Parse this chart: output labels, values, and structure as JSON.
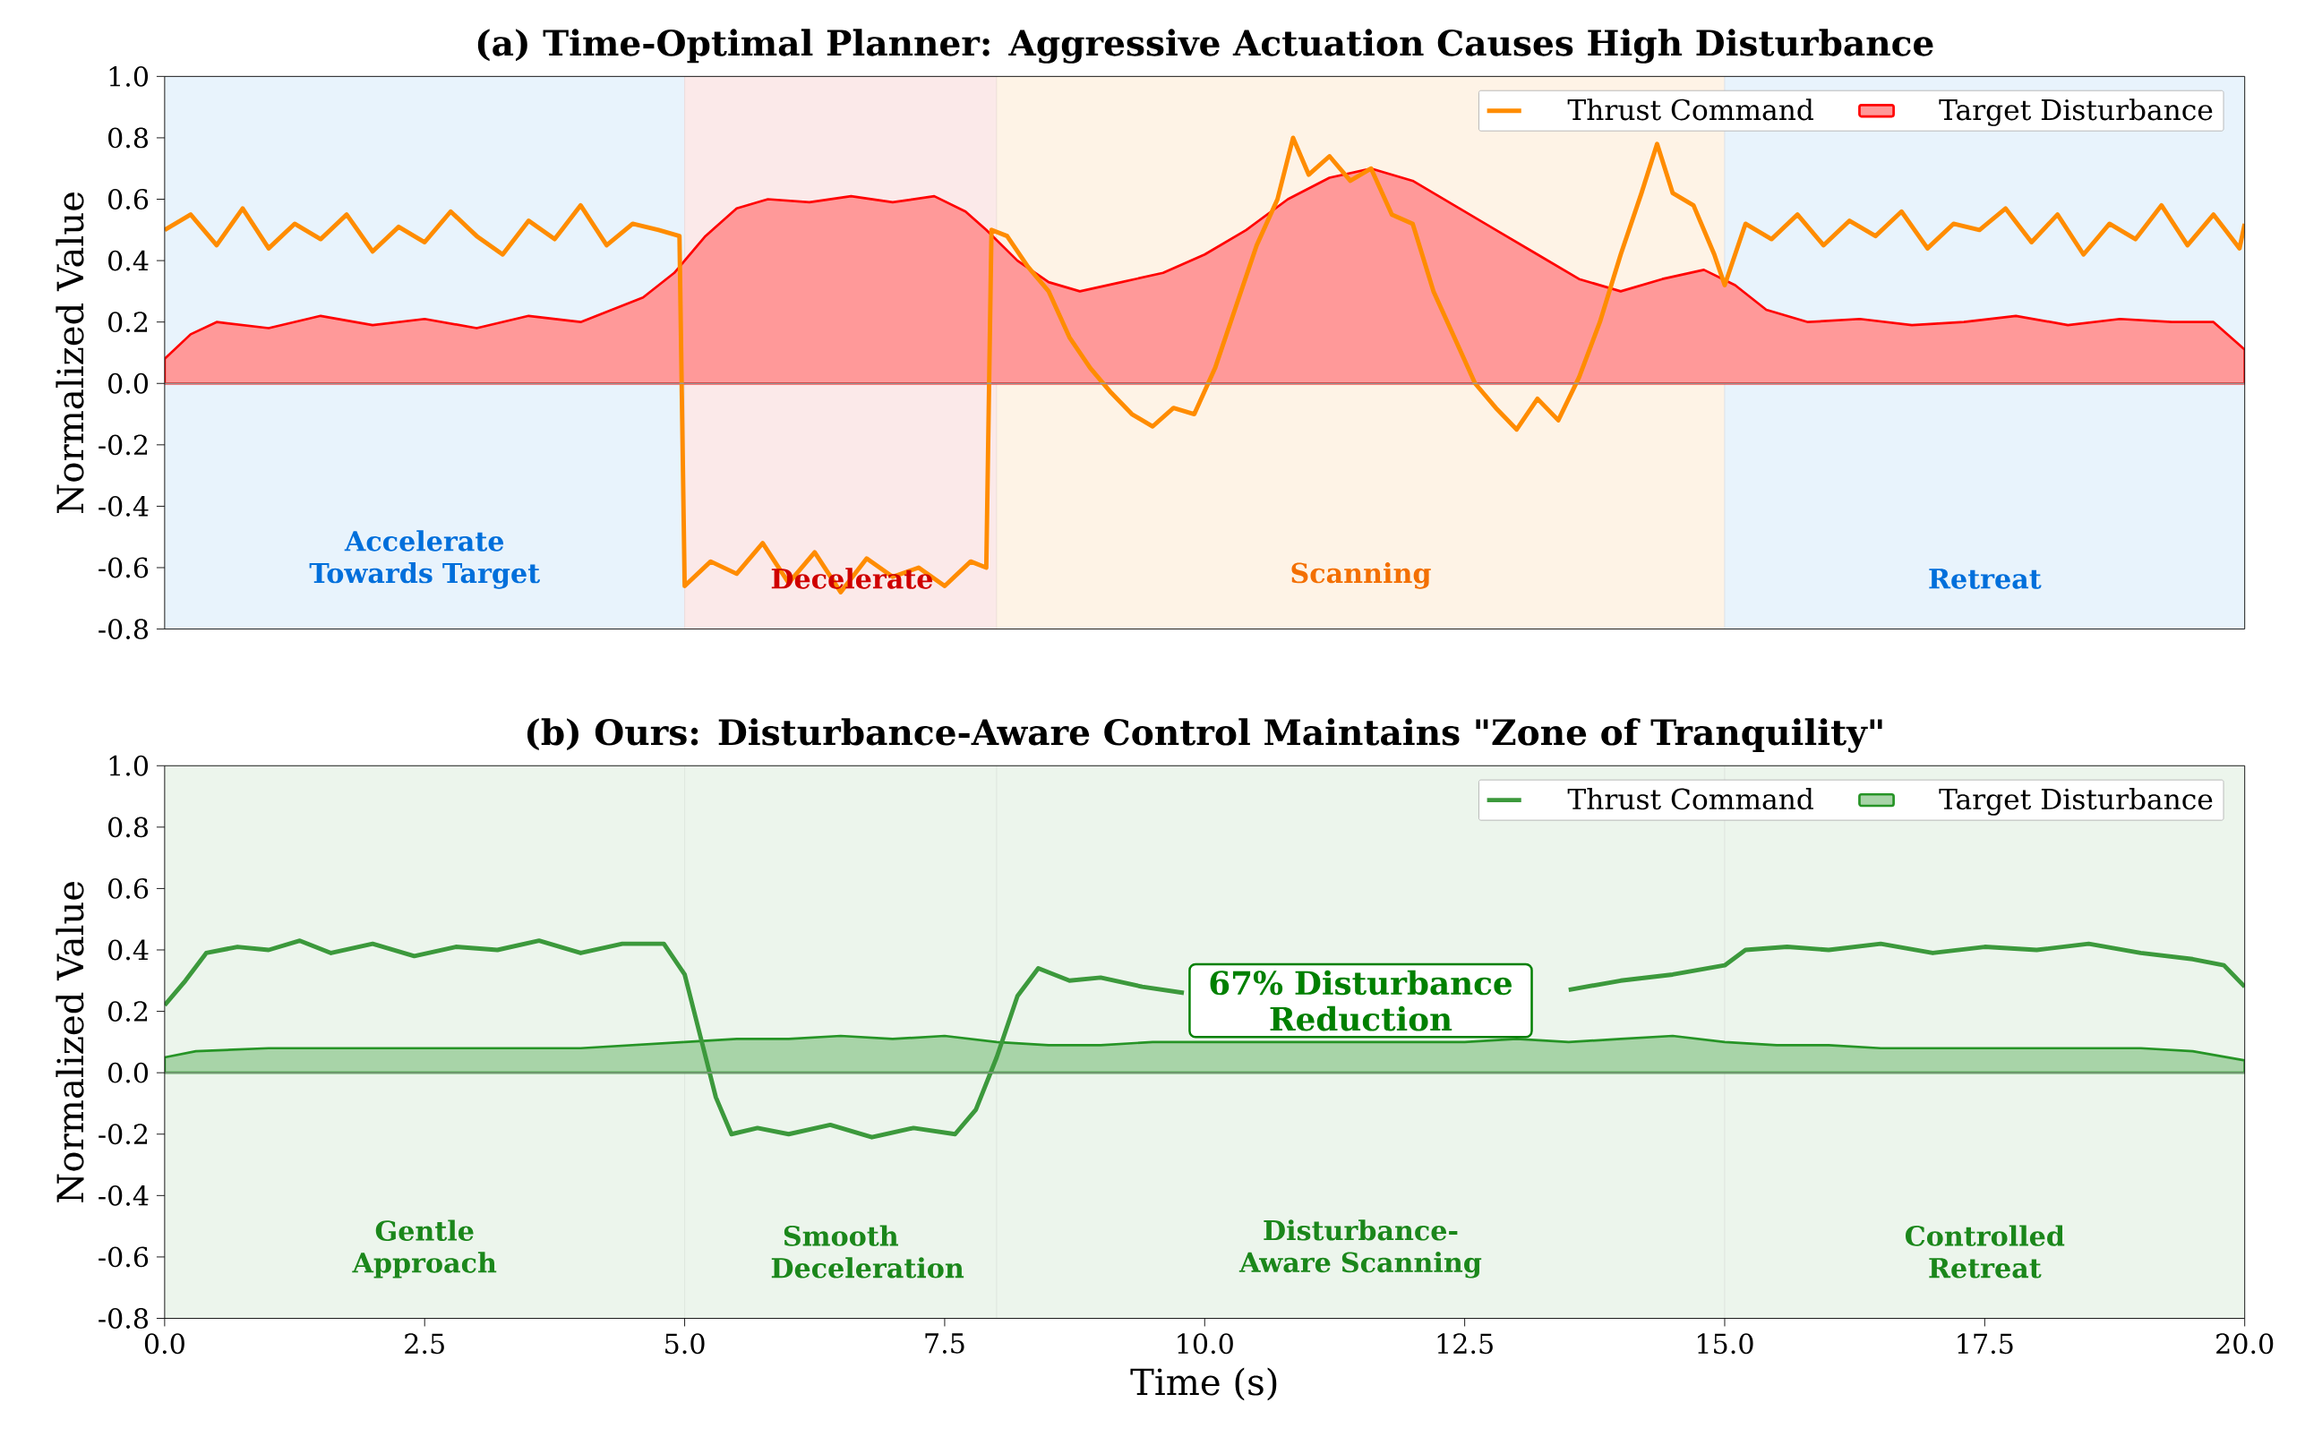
{
  "chart_data": [
    {
      "type": "line",
      "title": "(a) Time-Optimal Planner: Aggressive Actuation Causes High Disturbance",
      "ylabel": "Normalized Value",
      "xlim": [
        0,
        20
      ],
      "ylim": [
        -0.8,
        1.0
      ],
      "yticks": [
        {
          "value": -0.8,
          "label": "-0.8"
        },
        {
          "value": -0.6,
          "label": "-0.6"
        },
        {
          "value": -0.4,
          "label": "-0.4"
        },
        {
          "value": -0.2,
          "label": "-0.2"
        },
        {
          "value": 0,
          "label": "0.0"
        },
        {
          "value": 0.2,
          "label": "0.2"
        },
        {
          "value": 0.4,
          "label": "0.4"
        },
        {
          "value": 0.6,
          "label": "0.6"
        },
        {
          "value": 0.8,
          "label": "0.8"
        },
        {
          "value": 1.0,
          "label": "1.0"
        }
      ],
      "tick_labels": "y",
      "legend": "top right",
      "bands": [
        {
          "axis": "x",
          "from": 0,
          "to": 5,
          "label": "Accelerate Towards Target",
          "color": "#e8f3fc"
        },
        {
          "axis": "x",
          "from": 5,
          "to": 8,
          "label": "Decelerate",
          "color": "#fbe9e9"
        },
        {
          "axis": "x",
          "from": 8,
          "to": 15,
          "label": "Scanning",
          "color": "#fef3e6"
        },
        {
          "axis": "x",
          "from": 15,
          "to": 20,
          "label": "Retreat",
          "color": "#e8f3fc"
        }
      ],
      "ref_lines": [
        {
          "axis": "y",
          "value": 0,
          "color": "#999999"
        }
      ],
      "series": [
        {
          "name": "Target Disturbance",
          "type": "area",
          "color": "#ff9999",
          "x": [
            0,
            0.25,
            0.5,
            1.0,
            1.5,
            2.0,
            2.5,
            3.0,
            3.5,
            4.0,
            4.3,
            4.6,
            4.9,
            5.2,
            5.5,
            5.8,
            6.2,
            6.6,
            7.0,
            7.4,
            7.7,
            7.9,
            8.2,
            8.5,
            8.8,
            9.2,
            9.6,
            10.0,
            10.4,
            10.8,
            11.2,
            11.6,
            12.0,
            12.4,
            12.8,
            13.2,
            13.6,
            14.0,
            14.4,
            14.8,
            15.1,
            15.4,
            15.8,
            16.3,
            16.8,
            17.3,
            17.8,
            18.3,
            18.8,
            19.3,
            19.7,
            20
          ],
          "values": [
            0.08,
            0.16,
            0.2,
            0.18,
            0.22,
            0.19,
            0.21,
            0.18,
            0.22,
            0.2,
            0.24,
            0.28,
            0.36,
            0.48,
            0.57,
            0.6,
            0.59,
            0.61,
            0.59,
            0.61,
            0.56,
            0.5,
            0.4,
            0.33,
            0.3,
            0.33,
            0.36,
            0.42,
            0.5,
            0.6,
            0.67,
            0.7,
            0.66,
            0.58,
            0.5,
            0.42,
            0.34,
            0.3,
            0.34,
            0.37,
            0.32,
            0.24,
            0.2,
            0.21,
            0.19,
            0.2,
            0.22,
            0.19,
            0.21,
            0.2,
            0.2,
            0.11
          ]
        },
        {
          "name": "Thrust Command",
          "color": "#ff8c00",
          "x": [
            0,
            0.25,
            0.5,
            0.75,
            1.0,
            1.25,
            1.5,
            1.75,
            2.0,
            2.25,
            2.5,
            2.75,
            3.0,
            3.25,
            3.5,
            3.75,
            4.0,
            4.25,
            4.5,
            4.75,
            4.95,
            5.0,
            5.25,
            5.5,
            5.75,
            6.0,
            6.25,
            6.5,
            6.75,
            7.0,
            7.25,
            7.5,
            7.75,
            7.9,
            7.95,
            8.1,
            8.3,
            8.5,
            8.7,
            8.9,
            9.1,
            9.3,
            9.5,
            9.7,
            9.9,
            10.1,
            10.3,
            10.5,
            10.7,
            10.85,
            11.0,
            11.2,
            11.4,
            11.6,
            11.8,
            12.0,
            12.2,
            12.4,
            12.6,
            12.8,
            13.0,
            13.2,
            13.4,
            13.6,
            13.8,
            14.0,
            14.2,
            14.35,
            14.5,
            14.7,
            14.9,
            15.0,
            15.2,
            15.45,
            15.7,
            15.95,
            16.2,
            16.45,
            16.7,
            16.95,
            17.2,
            17.45,
            17.7,
            17.95,
            18.2,
            18.45,
            18.7,
            18.95,
            19.2,
            19.45,
            19.7,
            19.95,
            20.0
          ],
          "values": [
            0.5,
            0.55,
            0.45,
            0.57,
            0.44,
            0.52,
            0.47,
            0.55,
            0.43,
            0.51,
            0.46,
            0.56,
            0.48,
            0.42,
            0.53,
            0.47,
            0.58,
            0.45,
            0.52,
            0.5,
            0.48,
            -0.66,
            -0.58,
            -0.62,
            -0.52,
            -0.65,
            -0.55,
            -0.68,
            -0.57,
            -0.63,
            -0.6,
            -0.66,
            -0.58,
            -0.6,
            0.5,
            0.48,
            0.38,
            0.3,
            0.15,
            0.05,
            -0.03,
            -0.1,
            -0.14,
            -0.08,
            -0.1,
            0.05,
            0.25,
            0.45,
            0.6,
            0.8,
            0.68,
            0.74,
            0.66,
            0.7,
            0.55,
            0.52,
            0.3,
            0.15,
            0.0,
            -0.08,
            -0.15,
            -0.05,
            -0.12,
            0.02,
            0.2,
            0.42,
            0.62,
            0.78,
            0.62,
            0.58,
            0.42,
            0.32,
            0.52,
            0.47,
            0.55,
            0.45,
            0.53,
            0.48,
            0.56,
            0.44,
            0.52,
            0.5,
            0.57,
            0.46,
            0.55,
            0.42,
            0.52,
            0.47,
            0.58,
            0.45,
            0.55,
            0.44,
            0.52
          ]
        }
      ]
    },
    {
      "type": "line",
      "title": "(b) Ours: Disturbance-Aware Control Maintains \"Zone of Tranquility\"",
      "xlabel": "Time (s)",
      "ylabel": "Normalized Value",
      "xlim": [
        0,
        20
      ],
      "ylim": [
        -0.8,
        1.0
      ],
      "xticks": [
        {
          "value": 0,
          "label": "0.0"
        },
        {
          "value": 2.5,
          "label": "2.5"
        },
        {
          "value": 5,
          "label": "5.0"
        },
        {
          "value": 7.5,
          "label": "7.5"
        },
        {
          "value": 10,
          "label": "10.0"
        },
        {
          "value": 12.5,
          "label": "12.5"
        },
        {
          "value": 15,
          "label": "15.0"
        },
        {
          "value": 17.5,
          "label": "17.5"
        },
        {
          "value": 20,
          "label": "20.0"
        }
      ],
      "yticks": [
        {
          "value": -0.8,
          "label": "-0.8"
        },
        {
          "value": -0.6,
          "label": "-0.6"
        },
        {
          "value": -0.4,
          "label": "-0.4"
        },
        {
          "value": -0.2,
          "label": "-0.2"
        },
        {
          "value": 0,
          "label": "0.0"
        },
        {
          "value": 0.2,
          "label": "0.2"
        },
        {
          "value": 0.4,
          "label": "0.4"
        },
        {
          "value": 0.6,
          "label": "0.6"
        },
        {
          "value": 0.8,
          "label": "0.8"
        },
        {
          "value": 1.0,
          "label": "1.0"
        }
      ],
      "legend": "top right",
      "annotations": [
        "67% Disturbance Reduction"
      ],
      "bands": [
        {
          "axis": "x",
          "from": 0,
          "to": 5,
          "label": "Gentle Approach",
          "color": "#ecf5ec"
        },
        {
          "axis": "x",
          "from": 5,
          "to": 8,
          "label": "Smooth Deceleration",
          "color": "#ecf5ec"
        },
        {
          "axis": "x",
          "from": 8,
          "to": 15,
          "label": "Disturbance-Aware Scanning",
          "color": "#ecf5ec"
        },
        {
          "axis": "x",
          "from": 15,
          "to": 20,
          "label": "Controlled Retreat",
          "color": "#ecf5ec"
        }
      ],
      "ref_lines": [
        {
          "axis": "y",
          "value": 0,
          "color": "#999999"
        }
      ],
      "series": [
        {
          "name": "Target Disturbance",
          "type": "area",
          "color": "#a8d4a8",
          "x": [
            0,
            0.3,
            1,
            2,
            3,
            4,
            5,
            5.5,
            6,
            6.5,
            7,
            7.5,
            8,
            8.5,
            9,
            9.5,
            10,
            10.5,
            11,
            11.5,
            12,
            12.5,
            13,
            13.5,
            14,
            14.5,
            15,
            15.5,
            16,
            16.5,
            17,
            18,
            19,
            19.5,
            20
          ],
          "values": [
            0.05,
            0.07,
            0.08,
            0.08,
            0.08,
            0.08,
            0.1,
            0.11,
            0.11,
            0.12,
            0.11,
            0.12,
            0.1,
            0.09,
            0.09,
            0.1,
            0.1,
            0.1,
            0.1,
            0.1,
            0.1,
            0.1,
            0.11,
            0.1,
            0.11,
            0.12,
            0.1,
            0.09,
            0.09,
            0.08,
            0.08,
            0.08,
            0.08,
            0.07,
            0.04
          ]
        },
        {
          "name": "Thrust Command",
          "color": "#3c993c",
          "x": [
            0,
            0.2,
            0.4,
            0.7,
            1.0,
            1.3,
            1.6,
            2.0,
            2.4,
            2.8,
            3.2,
            3.6,
            4.0,
            4.4,
            4.8,
            5.0,
            5.15,
            5.3,
            5.45,
            5.7,
            6.0,
            6.4,
            6.8,
            7.2,
            7.6,
            7.8,
            8.0,
            8.2,
            8.4,
            8.7,
            9.0,
            9.4,
            9.8,
            10.2,
            10.6,
            11.0,
            11.5,
            12.0,
            12.5,
            13.0,
            13.5,
            14.0,
            14.5,
            15.0,
            15.2,
            15.6,
            16.0,
            16.5,
            17.0,
            17.5,
            18.0,
            18.5,
            19.0,
            19.5,
            19.8,
            20.0
          ],
          "values": [
            0.22,
            0.3,
            0.39,
            0.41,
            0.4,
            0.43,
            0.39,
            0.42,
            0.38,
            0.41,
            0.4,
            0.43,
            0.39,
            0.42,
            0.42,
            0.32,
            0.12,
            -0.08,
            -0.2,
            -0.18,
            -0.2,
            -0.17,
            -0.21,
            -0.18,
            -0.2,
            -0.12,
            0.05,
            0.25,
            0.34,
            0.3,
            0.31,
            0.28,
            0.26,
            null,
            null,
            null,
            null,
            null,
            null,
            null,
            0.27,
            0.3,
            0.32,
            0.35,
            0.4,
            0.41,
            0.4,
            0.42,
            0.39,
            0.41,
            0.4,
            0.42,
            0.39,
            0.37,
            0.35,
            0.28
          ]
        }
      ]
    }
  ]
}
